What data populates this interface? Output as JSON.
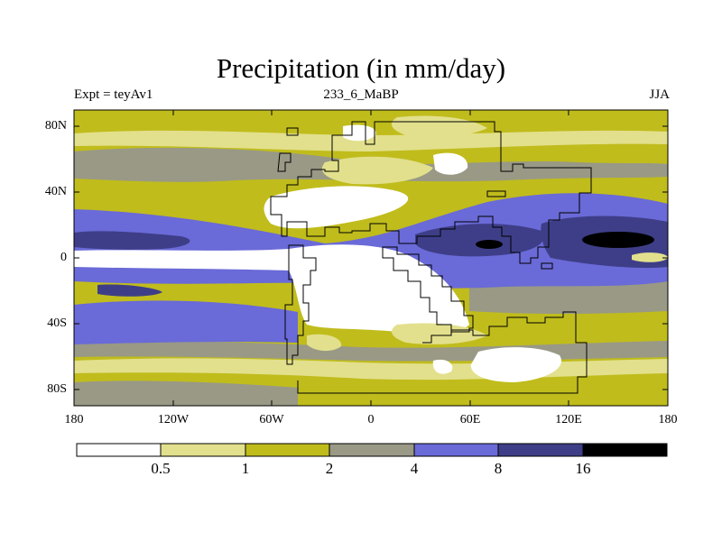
{
  "chart_data": {
    "type": "heatmap",
    "title": "Precipitation (in mm/day)",
    "left_string": "Expt = teyAv1",
    "center_string": "233_6_MaBP",
    "right_string": "JJA",
    "x_ticks": [
      "180",
      "120W",
      "60W",
      "0",
      "60E",
      "120E",
      "180"
    ],
    "y_ticks": [
      "80N",
      "40N",
      "0",
      "40S",
      "80S"
    ],
    "xlim": [
      -180,
      180
    ],
    "ylim": [
      -90,
      90
    ],
    "colorbar": {
      "levels": [
        "0.5",
        "1",
        "2",
        "4",
        "8",
        "16"
      ],
      "colors": [
        "#ffffff",
        "#e2e08c",
        "#c0bc1c",
        "#999986",
        "#6a6ad8",
        "#3e3e88",
        "#000000"
      ]
    }
  }
}
